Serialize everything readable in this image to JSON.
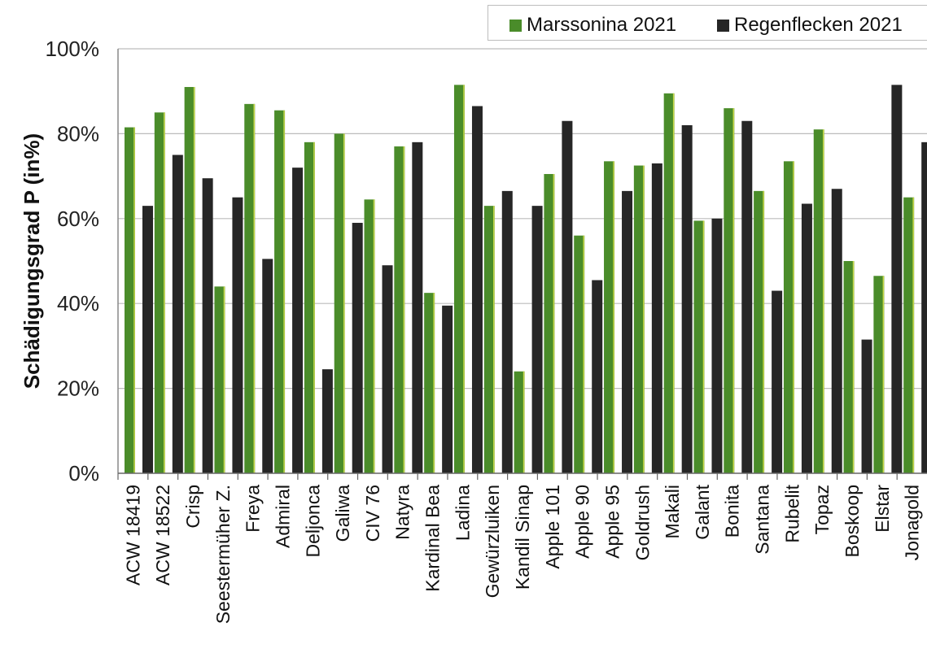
{
  "chart_data": {
    "type": "bar",
    "title": "",
    "xlabel": "",
    "ylabel": "Schädigungsgrad P (in%)",
    "ylim": [
      0,
      100
    ],
    "yticks": [
      "0%",
      "20%",
      "40%",
      "60%",
      "80%",
      "100%"
    ],
    "grid": true,
    "legend_position": "top-right",
    "categories": [
      "ACW 18419",
      "ACW 18522",
      "Crisp",
      "Seestermüher Z.",
      "Freya",
      "Admiral",
      "Deljonca",
      "Galiwa",
      "CIV 76",
      "Natyra",
      "Kardinal Bea",
      "Ladina",
      "Gewürzluiken",
      "Kandil Sinap",
      "Apple 101",
      "Apple 90",
      "Apple 95",
      "Goldrush",
      "Makali",
      "Galant",
      "Bonita",
      "Santana",
      "Rubelit",
      "Topaz",
      "Boskoop",
      "Elstar",
      "Jonagold"
    ],
    "series": [
      {
        "name": "Marssonina 2021",
        "color": "#4a8c2a",
        "values": [
          81.5,
          85,
          91,
          44,
          87,
          85.5,
          78,
          80,
          64.5,
          77,
          42.5,
          91.5,
          63,
          24,
          70.5,
          56,
          73.5,
          72.5,
          89.5,
          59.5,
          86,
          66.5,
          73.5,
          81,
          50,
          46.5,
          65
        ]
      },
      {
        "name": "Regenflecken 2021",
        "color": "#262626",
        "values": [
          63,
          75,
          69.5,
          65,
          50.5,
          72,
          24.5,
          59,
          49,
          78,
          39.5,
          86.5,
          66.5,
          63,
          83,
          45.5,
          66.5,
          73,
          82,
          60,
          83,
          43,
          63.5,
          67,
          31.5,
          91.5,
          78
        ]
      }
    ]
  }
}
